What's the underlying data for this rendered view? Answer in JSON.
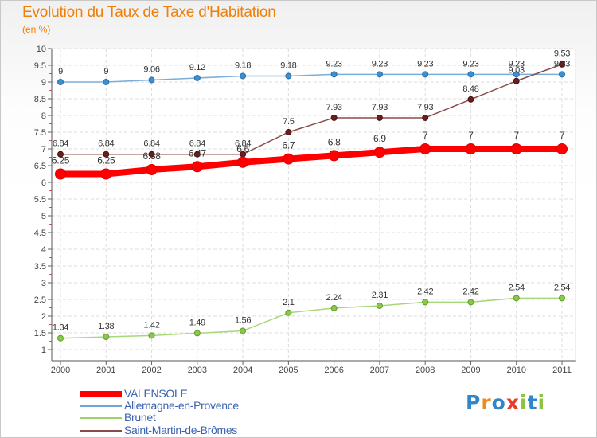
{
  "header": {
    "title": "Evolution du Taux de Taxe d'Habitation",
    "unit": "(en %)"
  },
  "logo": {
    "text": "Proxiti",
    "colors": [
      "#2f86c8",
      "#f08a1d",
      "#2f86c8",
      "#e83b2a",
      "#8cc33f",
      "#2f86c8",
      "#8cc33f"
    ]
  },
  "chart_data": {
    "type": "line",
    "title": "Evolution du Taux de Taxe d'Habitation",
    "ylabel": "(en %)",
    "xlabel": "",
    "x": [
      "2000",
      "2001",
      "2002",
      "2003",
      "2004",
      "2005",
      "2006",
      "2007",
      "2008",
      "2009",
      "2010",
      "2011"
    ],
    "ylim": [
      1,
      10
    ],
    "yticks": [
      "1",
      "1.5",
      "2",
      "2.5",
      "3",
      "3.5",
      "4",
      "4.5",
      "5",
      "5.5",
      "6",
      "6.5",
      "7",
      "7.5",
      "8",
      "8.5",
      "9",
      "9.5",
      "10"
    ],
    "grid": true,
    "legend_position": "bottom",
    "series": [
      {
        "name": "VALENSOLE",
        "color": "#ff0000",
        "values": [
          6.25,
          6.25,
          6.38,
          6.47,
          6.6,
          6.7,
          6.8,
          6.9,
          7,
          7,
          7,
          7
        ],
        "labels": [
          "6.25",
          "6.25",
          "6.38",
          "6.47",
          "6.6",
          "6.7",
          "6.8",
          "6.9",
          "7",
          "7",
          "7",
          "7"
        ]
      },
      {
        "name": "Allemagne-en-Provence",
        "color": "#6ca5d6",
        "values": [
          9,
          9,
          9.06,
          9.12,
          9.18,
          9.18,
          9.23,
          9.23,
          9.23,
          9.23,
          9.23,
          9.23
        ],
        "labels": [
          "9",
          "9",
          "9.06",
          "9.12",
          "9.18",
          "9.18",
          "9.23",
          "9.23",
          "9.23",
          "9.23",
          "9.23",
          "9.23"
        ]
      },
      {
        "name": "Brunet",
        "color": "#9ed36a",
        "values": [
          1.34,
          1.38,
          1.42,
          1.49,
          1.56,
          2.1,
          2.24,
          2.31,
          2.42,
          2.42,
          2.54,
          2.54
        ],
        "labels": [
          "1.34",
          "1.38",
          "1.42",
          "1.49",
          "1.56",
          "2.1",
          "2.24",
          "2.31",
          "2.42",
          "2.42",
          "2.54",
          "2.54"
        ]
      },
      {
        "name": "Saint-Martin-de-Brômes",
        "color": "#8b4a4a",
        "values": [
          6.84,
          6.84,
          6.84,
          6.84,
          6.84,
          7.5,
          7.93,
          7.93,
          7.93,
          8.48,
          9.03,
          9.53
        ],
        "labels": [
          "6.84",
          "6.84",
          "6.84",
          "6.84",
          "6.84",
          "7.5",
          "7.93",
          "7.93",
          "7.93",
          "8.48",
          "9.03",
          "9.53"
        ]
      }
    ]
  }
}
